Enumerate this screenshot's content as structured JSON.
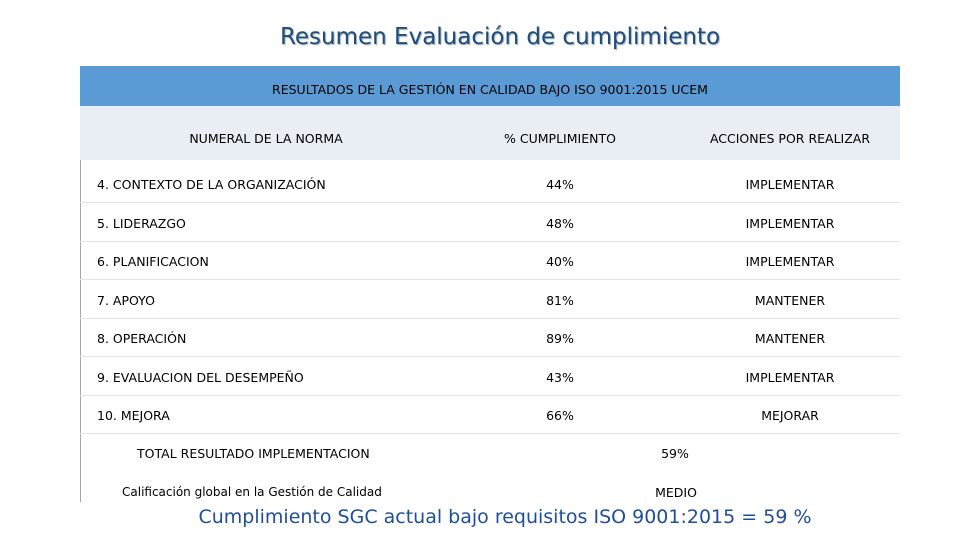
{
  "title": "Resumen Evaluación de cumplimiento",
  "table": {
    "caption": "RESULTADOS DE LA GESTIÓN EN CALIDAD BAJO ISO 9001:2015 UCEM",
    "header": [
      "NUMERAL DE LA NORMA",
      "% CUMPLIMIENTO",
      "ACCIONES POR REALIZAR"
    ],
    "rows": [
      [
        "4. CONTEXTO DE LA ORGANIZACIÓN",
        "44%",
        "IMPLEMENTAR"
      ],
      [
        "5. LIDERAZGO",
        "48%",
        "IMPLEMENTAR"
      ],
      [
        "6. PLANIFICACION",
        "40%",
        "IMPLEMENTAR"
      ],
      [
        "7. APOYO",
        "81%",
        "MANTENER"
      ],
      [
        "8. OPERACIÓN",
        "89%",
        "MANTENER"
      ],
      [
        "9. EVALUACION DEL DESEMPEÑO",
        "43%",
        "IMPLEMENTAR"
      ],
      [
        "10. MEJORA",
        "66%",
        "MEJORAR"
      ]
    ],
    "total": {
      "label": "TOTAL RESULTADO IMPLEMENTACION",
      "value": "59%"
    },
    "rating": {
      "label": "Calificación global en la Gestión de Calidad",
      "value": "MEDIO"
    }
  },
  "footer": "Cumplimiento SGC actual bajo requisitos ISO 9001:2015 = 59 %"
}
